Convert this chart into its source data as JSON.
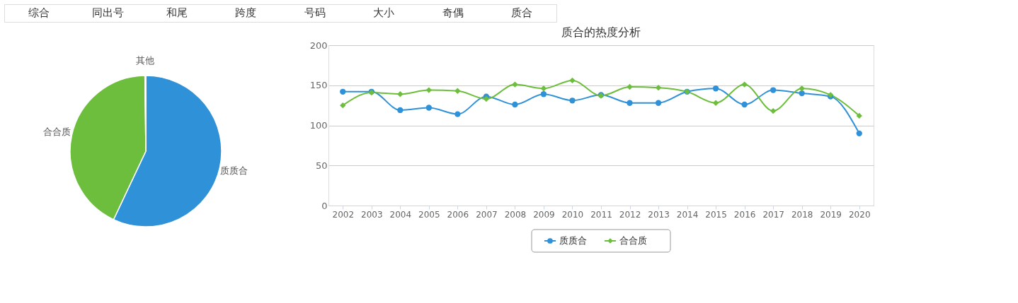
{
  "chart_data": [
    {
      "type": "other",
      "annotations": [
        "综合",
        "同出号",
        "和尾",
        "跨度",
        "号码",
        "大小",
        "奇偶",
        "质合"
      ]
    },
    {
      "type": "pie",
      "categories": [
        "质质合",
        "合合质",
        "其他"
      ],
      "values": [
        57,
        42.8,
        0.2
      ],
      "colors": [
        "#2f91d8",
        "#6cbe3c",
        "#e0e0e0"
      ],
      "legend": false
    },
    {
      "type": "line",
      "title": "质合的热度分析",
      "categories": [
        "2002",
        "2003",
        "2004",
        "2005",
        "2006",
        "2007",
        "2008",
        "2009",
        "2010",
        "2011",
        "2012",
        "2013",
        "2014",
        "2015",
        "2016",
        "2017",
        "2018",
        "2019",
        "2020"
      ],
      "series": [
        {
          "name": "质质合",
          "color": "#2f91d8",
          "marker": "circle",
          "values": [
            142,
            142,
            119,
            122,
            114,
            136,
            126,
            139,
            131,
            138,
            128,
            128,
            142,
            146,
            126,
            144,
            140,
            136,
            90
          ]
        },
        {
          "name": "合合质",
          "color": "#6cbe3c",
          "marker": "diamond",
          "values": [
            125,
            141,
            139,
            144,
            143,
            133,
            151,
            146,
            156,
            137,
            148,
            147,
            142,
            128,
            151,
            118,
            146,
            138,
            112
          ]
        }
      ],
      "ylim": [
        0,
        200
      ],
      "yticks": [
        0,
        50,
        100,
        150,
        200
      ],
      "grid": "y",
      "legend": "bottom"
    }
  ]
}
